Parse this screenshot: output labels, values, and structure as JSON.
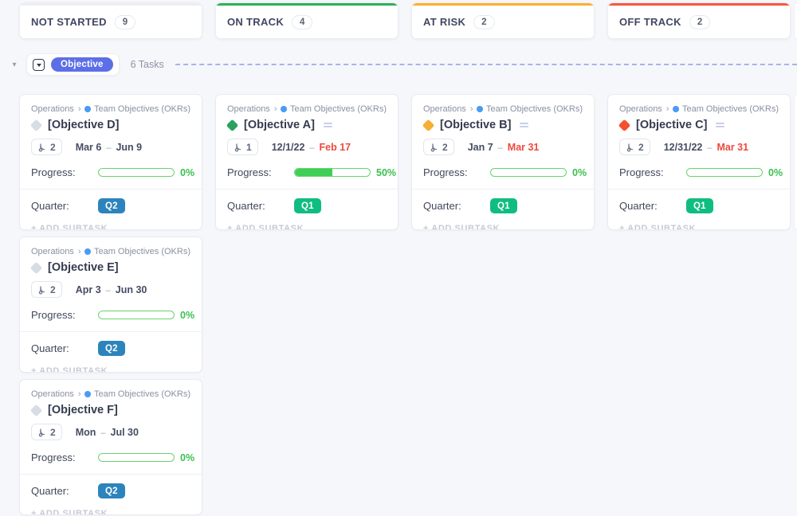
{
  "status_columns": [
    {
      "label": "NOT STARTED",
      "count": "9",
      "accent": "#eceef3"
    },
    {
      "label": "ON TRACK",
      "count": "4",
      "accent": "#2bb159"
    },
    {
      "label": "AT RISK",
      "count": "2",
      "accent": "#fbb02d"
    },
    {
      "label": "OFF TRACK",
      "count": "2",
      "accent": "#f6573f"
    }
  ],
  "group": {
    "collapse_icon": "▾",
    "tag": "Objective",
    "tasks_label": "6 Tasks"
  },
  "breadcrumb": {
    "space": "Operations",
    "separator": "›",
    "dot_color": "#4a9bf5",
    "list": "Team Objectives (OKRs)"
  },
  "card_labels": {
    "progress": "Progress:",
    "quarter": "Quarter:",
    "add_subtask": "+ ADD SUBTASK",
    "date_separator": "–"
  },
  "colors": {
    "progress_border": "#68d36f",
    "progress_fill": "#3ecf57",
    "progress_text": "#3ac14e",
    "overdue_date": "#ec4a3d",
    "date_normal": "#454d63"
  },
  "cards": [
    {
      "column": 0,
      "status_color": "#d8dce4",
      "title": "[Objective D]",
      "has_description": false,
      "subtask_count": "2",
      "start_date": "Mar 6",
      "due_date": "Jun 9",
      "due_overdue": false,
      "progress_percent": 0,
      "progress_text": "0%",
      "quarter": "Q2",
      "quarter_color": "#2d84bc"
    },
    {
      "column": 0,
      "status_color": "#d8dce4",
      "title": "[Objective E]",
      "has_description": false,
      "subtask_count": "2",
      "start_date": "Apr 3",
      "due_date": "Jun 30",
      "due_overdue": false,
      "progress_percent": 0,
      "progress_text": "0%",
      "quarter": "Q2",
      "quarter_color": "#2d84bc"
    },
    {
      "column": 0,
      "status_color": "#d8dce4",
      "title": "[Objective F]",
      "has_description": false,
      "subtask_count": "2",
      "start_date": "Mon",
      "due_date": "Jul 30",
      "due_overdue": false,
      "progress_percent": 0,
      "progress_text": "0%",
      "quarter": "Q2",
      "quarter_color": "#2d84bc"
    },
    {
      "column": 1,
      "status_color": "#2aa25d",
      "title": "[Objective A]",
      "has_description": true,
      "subtask_count": "1",
      "start_date": "12/1/22",
      "due_date": "Feb 17",
      "due_overdue": true,
      "progress_percent": 50,
      "progress_text": "50%",
      "quarter": "Q1",
      "quarter_color": "#10bd80"
    },
    {
      "column": 2,
      "status_color": "#f6ae33",
      "title": "[Objective B]",
      "has_description": true,
      "subtask_count": "2",
      "start_date": "Jan 7",
      "due_date": "Mar 31",
      "due_overdue": true,
      "progress_percent": 0,
      "progress_text": "0%",
      "quarter": "Q1",
      "quarter_color": "#10bd80"
    },
    {
      "column": 3,
      "status_color": "#f5502f",
      "title": "[Objective C]",
      "has_description": true,
      "subtask_count": "2",
      "start_date": "12/31/22",
      "due_date": "Mar 31",
      "due_overdue": true,
      "progress_percent": 0,
      "progress_text": "0%",
      "quarter": "Q1",
      "quarter_color": "#10bd80"
    }
  ]
}
